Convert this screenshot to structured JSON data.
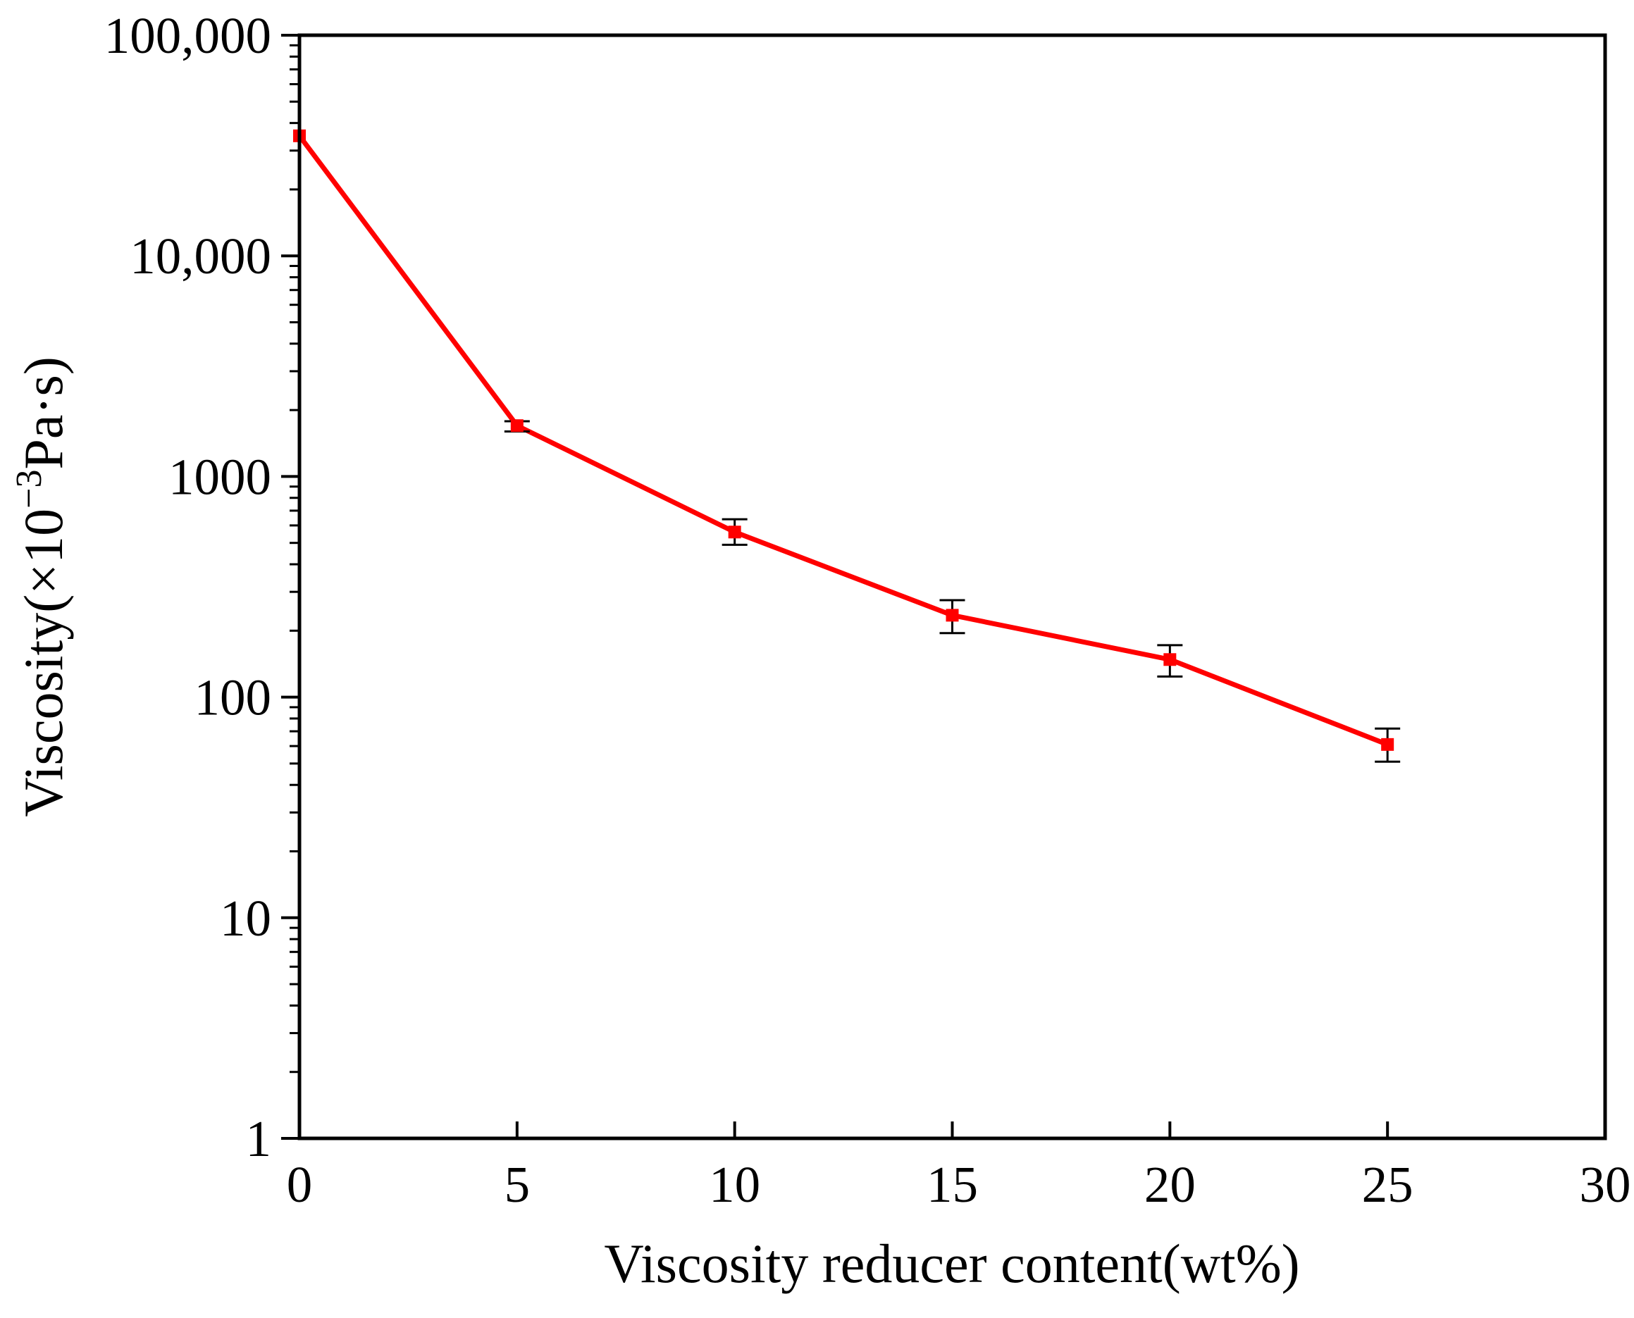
{
  "chart_data": {
    "type": "line",
    "xlabel": "Viscosity reducer content(wt%)",
    "ylabel": {
      "prefix": "Viscosity(×10",
      "exponent": "−3",
      "suffix": "Pa·s)"
    },
    "x_ticks": [
      0,
      5,
      10,
      15,
      20,
      25,
      30
    ],
    "x_tick_labels": [
      "0",
      "5",
      "10",
      "15",
      "20",
      "25",
      "30"
    ],
    "y_scale": "log",
    "y_ticks": [
      1,
      10,
      100,
      1000,
      10000,
      100000
    ],
    "y_tick_labels": [
      "1",
      "10",
      "100",
      "1000",
      "10,000",
      "100,000"
    ],
    "xlim": [
      0,
      30
    ],
    "ylim": [
      1,
      100000
    ],
    "grid": false,
    "legend": "none",
    "series": [
      {
        "color": "#ff0000",
        "marker": "square",
        "points": [
          {
            "x": 0,
            "y": 35000,
            "err_low": 35000,
            "err_high": 35000
          },
          {
            "x": 5,
            "y": 1700,
            "err_low": 1600,
            "err_high": 1780
          },
          {
            "x": 10,
            "y": 560,
            "err_low": 490,
            "err_high": 640
          },
          {
            "x": 15,
            "y": 235,
            "err_low": 195,
            "err_high": 275
          },
          {
            "x": 20,
            "y": 148,
            "err_low": 124,
            "err_high": 172
          },
          {
            "x": 25,
            "y": 61,
            "err_low": 51,
            "err_high": 72
          }
        ]
      }
    ]
  }
}
